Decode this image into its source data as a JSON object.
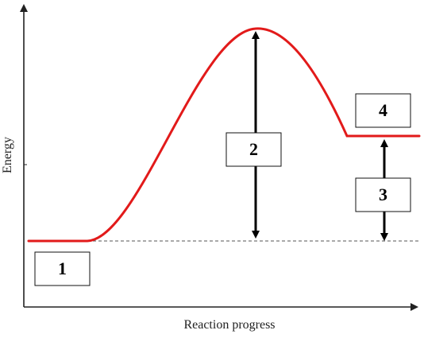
{
  "axes": {
    "y_label": "Energy",
    "x_label": "Reaction progress"
  },
  "labels": {
    "reactants": "1",
    "activation_energy": "2",
    "reaction_energy": "3",
    "products": "4"
  },
  "colors": {
    "curve": "#e21a1a"
  }
}
